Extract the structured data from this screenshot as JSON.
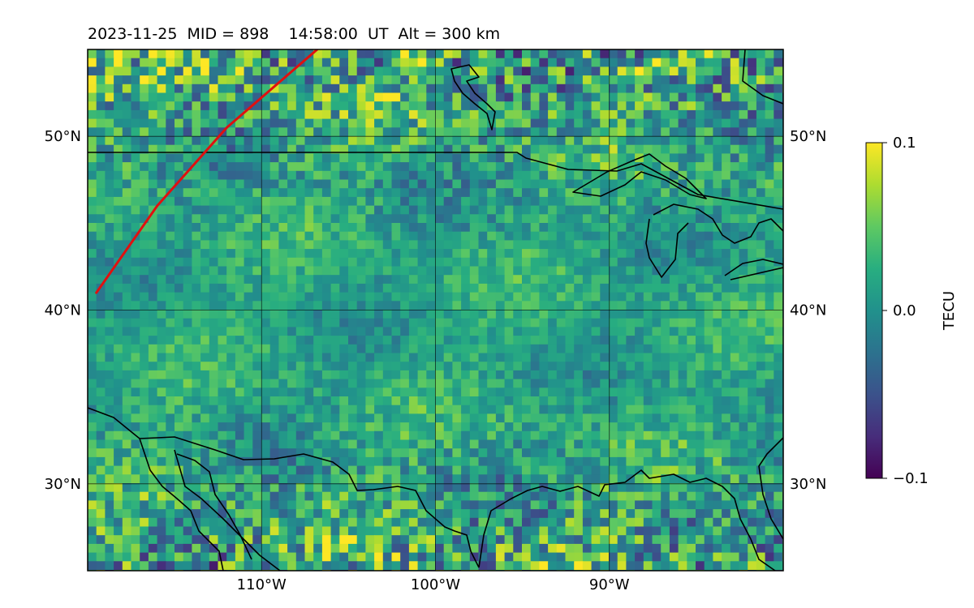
{
  "title": "2023-11-25  MID = 898    14:58:00  UT  Alt = 300 km",
  "map": {
    "lon_range": [
      -120,
      -80
    ],
    "lat_range": [
      25,
      55
    ],
    "lat_ticks": [
      {
        "value": 30,
        "label": "30°N"
      },
      {
        "value": 40,
        "label": "40°N"
      },
      {
        "value": 50,
        "label": "50°N"
      }
    ],
    "lon_ticks": [
      {
        "value": -110,
        "label": "110°W"
      },
      {
        "value": -100,
        "label": "100°W"
      },
      {
        "value": -90,
        "label": "90°W"
      }
    ],
    "gridlines": true,
    "field": "TEC perturbation (viridis colormap, noisy, stronger yellow/purple patches near north and south edges)",
    "track": {
      "color": "#e01010",
      "points": [
        [
          -119.5,
          41
        ],
        [
          -116,
          46
        ],
        [
          -112,
          50.5
        ],
        [
          -106.8,
          55
        ]
      ]
    }
  },
  "colorbar": {
    "label": "TECU",
    "colormap": "viridis",
    "min": -0.1,
    "max": 0.1,
    "ticks": [
      {
        "value": 0.1,
        "label": "0.1"
      },
      {
        "value": 0.0,
        "label": "0.0"
      },
      {
        "value": -0.1,
        "label": "−0.1"
      }
    ]
  }
}
